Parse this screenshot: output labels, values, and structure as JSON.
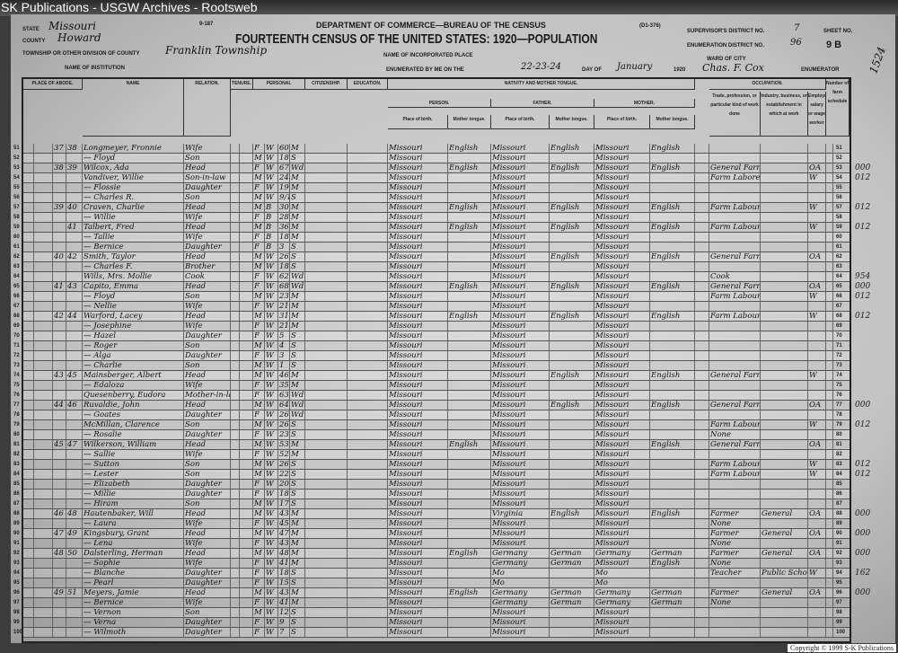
{
  "window": {
    "title": "SK Publications - USGW Archives - Rootsweb"
  },
  "header": {
    "form_no": "9-187",
    "form_code": "(D1-376)",
    "department": "DEPARTMENT OF COMMERCE—BUREAU OF THE CENSUS",
    "title": "FOURTEENTH CENSUS OF THE UNITED STATES: 1920—POPULATION",
    "state_label": "STATE",
    "state": "Missouri",
    "county_label": "COUNTY",
    "county": "Howard",
    "township_label": "TOWNSHIP OR OTHER DIVISION OF COUNTY",
    "township": "Franklin Township",
    "institution_label": "NAME OF INSTITUTION",
    "place_label": "NAME OF INCORPORATED PLACE",
    "ward_label": "WARD OF CITY",
    "supervisor_label": "SUPERVISOR'S DISTRICT NO.",
    "supervisor": "7",
    "ed_label": "ENUMERATION DISTRICT NO.",
    "ed": "96",
    "sheet_label": "SHEET NO.",
    "sheet": "9 B",
    "enumerated_label": "ENUMERATED BY ME ON THE",
    "enumerated_days": "22-23-24",
    "day_of_label": "DAY OF",
    "month": "January",
    "year": "1920",
    "enumerator_name": "Chas. F. Cox",
    "enumerator_label": "ENUMERATOR",
    "margin_note": "1524"
  },
  "columns": {
    "abode": "PLACE OF ABODE.",
    "name": "NAME",
    "relation": "RELATION.",
    "tenure": "TENURE.",
    "personal": "PERSONAL DESCRIPTION.",
    "citizenship": "CITIZENSHIP.",
    "education": "EDUCATION.",
    "nativity": "NATIVITY AND MOTHER TONGUE.",
    "person": "PERSON.",
    "father": "FATHER.",
    "mother": "MOTHER.",
    "place_of_birth": "Place of birth.",
    "mother_tongue": "Mother tongue.",
    "occupation": "OCCUPATION.",
    "trade": "Trade, profession, or particular kind of work done",
    "industry": "Industry, business, or establishment in which at work",
    "employer": "Employer, salary or wage worker",
    "farm_schedule": "Number of farm schedule"
  },
  "rows": [
    [
      "51",
      "37",
      "38",
      "Longmeyer, Fronnie",
      "Wife",
      "F",
      "W",
      "60",
      "M",
      "Missouri",
      "English",
      "Missouri",
      "English",
      "Missouri",
      "English",
      "",
      "",
      "",
      ""
    ],
    [
      "52",
      "",
      "",
      "— Floyd",
      "Son",
      "M",
      "W",
      "18",
      "S",
      "Missouri",
      "",
      "Missouri",
      "",
      "Missouri",
      "",
      "",
      "",
      "",
      ""
    ],
    [
      "53",
      "38",
      "39",
      "Wilcox, Ada",
      "Head",
      "F",
      "W",
      "67",
      "Wd",
      "Missouri",
      "English",
      "Missouri",
      "English",
      "Missouri",
      "English",
      "General Farming",
      "",
      "OA",
      "000"
    ],
    [
      "54",
      "",
      "",
      "Vandiver, Willie",
      "Son-in-law",
      "M",
      "W",
      "24",
      "M",
      "Missouri",
      "",
      "Missouri",
      "",
      "Missouri",
      "",
      "Farm Laborer",
      "",
      "W",
      "012"
    ],
    [
      "55",
      "",
      "",
      "— Flossie",
      "Daughter",
      "F",
      "W",
      "19",
      "M",
      "Missouri",
      "",
      "Missouri",
      "",
      "Missouri",
      "",
      "",
      "",
      "",
      ""
    ],
    [
      "56",
      "",
      "",
      "— Charles R.",
      "Son",
      "M",
      "W",
      "9/12",
      "S",
      "Missouri",
      "",
      "Missouri",
      "",
      "Missouri",
      "",
      "",
      "",
      "",
      ""
    ],
    [
      "57",
      "39",
      "40",
      "Craven, Charlie",
      "Head",
      "M",
      "B",
      "30",
      "M",
      "Missouri",
      "English",
      "Missouri",
      "English",
      "Missouri",
      "English",
      "Farm Labour",
      "",
      "W",
      "012"
    ],
    [
      "58",
      "",
      "",
      "— Willie",
      "Wife",
      "F",
      "B",
      "28",
      "M",
      "Missouri",
      "",
      "Missouri",
      "",
      "Missouri",
      "",
      "",
      "",
      "",
      ""
    ],
    [
      "59",
      "",
      "41",
      "Talbert, Fred",
      "Head",
      "M",
      "B",
      "36",
      "M",
      "Missouri",
      "English",
      "Missouri",
      "English",
      "Missouri",
      "English",
      "Farm Labour",
      "",
      "W",
      "012"
    ],
    [
      "60",
      "",
      "",
      "— Tallie",
      "Wife",
      "F",
      "B",
      "18",
      "M",
      "Missouri",
      "",
      "Missouri",
      "",
      "Missouri",
      "",
      "",
      "",
      "",
      ""
    ],
    [
      "61",
      "",
      "",
      "— Bernice",
      "Daughter",
      "F",
      "B",
      "3",
      "S",
      "Missouri",
      "",
      "Missouri",
      "",
      "Missouri",
      "",
      "",
      "",
      "",
      ""
    ],
    [
      "62",
      "40",
      "42",
      "Smith, Taylor",
      "Head",
      "M",
      "W",
      "26",
      "S",
      "Missouri",
      "",
      "Missouri",
      "English",
      "Missouri",
      "English",
      "General Farming",
      "",
      "OA",
      ""
    ],
    [
      "63",
      "",
      "",
      "— Charles F.",
      "Brother",
      "M",
      "W",
      "18",
      "S",
      "Missouri",
      "",
      "Missouri",
      "",
      "Missouri",
      "",
      "",
      "",
      "",
      ""
    ],
    [
      "64",
      "",
      "",
      "Wills, Mrs. Mollie",
      "Cook",
      "F",
      "W",
      "62",
      "Wd",
      "Missouri",
      "",
      "Missouri",
      "",
      "Missouri",
      "",
      "Cook",
      "",
      "",
      "954"
    ],
    [
      "65",
      "41",
      "43",
      "Capito, Emma",
      "Head",
      "F",
      "W",
      "68",
      "Wd",
      "Missouri",
      "English",
      "Missouri",
      "English",
      "Missouri",
      "English",
      "General Farming",
      "",
      "OA",
      "000"
    ],
    [
      "66",
      "",
      "",
      "— Floyd",
      "Son",
      "M",
      "W",
      "23",
      "M",
      "Missouri",
      "",
      "Missouri",
      "",
      "Missouri",
      "",
      "Farm Labour",
      "",
      "W",
      "012"
    ],
    [
      "67",
      "",
      "",
      "— Nellie",
      "Wife",
      "F",
      "W",
      "21",
      "M",
      "Missouri",
      "",
      "Missouri",
      "",
      "Missouri",
      "",
      "",
      "",
      "",
      ""
    ],
    [
      "68",
      "42",
      "44",
      "Warford, Lacey",
      "Head",
      "M",
      "W",
      "31",
      "M",
      "Missouri",
      "English",
      "Missouri",
      "English",
      "Missouri",
      "English",
      "Farm Labour",
      "",
      "W",
      "012"
    ],
    [
      "69",
      "",
      "",
      "— Josephine",
      "Wife",
      "F",
      "W",
      "21",
      "M",
      "Missouri",
      "",
      "Missouri",
      "",
      "Missouri",
      "",
      "",
      "",
      "",
      ""
    ],
    [
      "70",
      "",
      "",
      "— Hazel",
      "Daughter",
      "F",
      "W",
      "5",
      "S",
      "Missouri",
      "",
      "Missouri",
      "",
      "Missouri",
      "",
      "",
      "",
      "",
      ""
    ],
    [
      "71",
      "",
      "",
      "— Roger",
      "Son",
      "M",
      "W",
      "4",
      "S",
      "Missouri",
      "",
      "Missouri",
      "",
      "Missouri",
      "",
      "",
      "",
      "",
      ""
    ],
    [
      "72",
      "",
      "",
      "— Alga",
      "Daughter",
      "F",
      "W",
      "3",
      "S",
      "Missouri",
      "",
      "Missouri",
      "",
      "Missouri",
      "",
      "",
      "",
      "",
      ""
    ],
    [
      "73",
      "",
      "",
      "— Charlie",
      "Son",
      "M",
      "W",
      "1",
      "S",
      "Missouri",
      "",
      "Missouri",
      "",
      "Missouri",
      "",
      "",
      "",
      "",
      ""
    ],
    [
      "74",
      "43",
      "45",
      "Mainsberger, Albert",
      "Head",
      "M",
      "W",
      "46",
      "M",
      "Missouri",
      "",
      "Missouri",
      "English",
      "Missouri",
      "English",
      "General Farming",
      "",
      "W",
      ""
    ],
    [
      "75",
      "",
      "",
      "— Edaloza",
      "Wife",
      "F",
      "W",
      "35",
      "M",
      "Missouri",
      "",
      "Missouri",
      "",
      "Missouri",
      "",
      "",
      "",
      "",
      ""
    ],
    [
      "76",
      "",
      "",
      "Quesenberry, Eudora",
      "Mother-in-law",
      "F",
      "W",
      "63",
      "Wd",
      "Missouri",
      "",
      "Missouri",
      "",
      "Missouri",
      "",
      "",
      "",
      "",
      ""
    ],
    [
      "77",
      "44",
      "46",
      "Ruvaldie, John",
      "Head",
      "M",
      "W",
      "64",
      "Wd",
      "Missouri",
      "",
      "Missouri",
      "English",
      "Missouri",
      "English",
      "General Farming",
      "",
      "OA",
      "000"
    ],
    [
      "78",
      "",
      "",
      "— Goates",
      "Daughter",
      "F",
      "W",
      "26",
      "Wd",
      "Missouri",
      "",
      "Missouri",
      "",
      "Missouri",
      "",
      "",
      "",
      "",
      ""
    ],
    [
      "79",
      "",
      "",
      "McMillan, Clarence",
      "Son",
      "M",
      "W",
      "26",
      "S",
      "Missouri",
      "",
      "Missouri",
      "",
      "Missouri",
      "",
      "Farm Labour",
      "",
      "W",
      "012"
    ],
    [
      "80",
      "",
      "",
      "— Rosalie",
      "Daughter",
      "F",
      "W",
      "23",
      "S",
      "Missouri",
      "",
      "Missouri",
      "",
      "Missouri",
      "",
      "None",
      "",
      "",
      ""
    ],
    [
      "81",
      "45",
      "47",
      "Wilkerson, William",
      "Head",
      "M",
      "W",
      "53",
      "M",
      "Missouri",
      "English",
      "Missouri",
      "",
      "Missouri",
      "English",
      "General Farming",
      "",
      "OA",
      ""
    ],
    [
      "82",
      "",
      "",
      "— Sallie",
      "Wife",
      "F",
      "W",
      "52",
      "M",
      "Missouri",
      "",
      "Missouri",
      "",
      "Missouri",
      "",
      "",
      "",
      "",
      ""
    ],
    [
      "83",
      "",
      "",
      "— Sutton",
      "Son",
      "M",
      "W",
      "26",
      "S",
      "Missouri",
      "",
      "Missouri",
      "",
      "Missouri",
      "",
      "Farm Labour",
      "",
      "W",
      "012"
    ],
    [
      "84",
      "",
      "",
      "— Lester",
      "Son",
      "M",
      "W",
      "22",
      "S",
      "Missouri",
      "",
      "Missouri",
      "",
      "Missouri",
      "",
      "Farm Labour",
      "",
      "W",
      "012"
    ],
    [
      "85",
      "",
      "",
      "— Elizabeth",
      "Daughter",
      "F",
      "W",
      "20",
      "S",
      "Missouri",
      "",
      "Missouri",
      "",
      "Missouri",
      "",
      "",
      "",
      "",
      ""
    ],
    [
      "86",
      "",
      "",
      "— Millie",
      "Daughter",
      "F",
      "W",
      "18",
      "S",
      "Missouri",
      "",
      "Missouri",
      "",
      "Missouri",
      "",
      "",
      "",
      "",
      ""
    ],
    [
      "87",
      "",
      "",
      "— Hiram",
      "Son",
      "M",
      "W",
      "17",
      "S",
      "Missouri",
      "",
      "Missouri",
      "",
      "Missouri",
      "",
      "",
      "",
      "",
      ""
    ],
    [
      "88",
      "46",
      "48",
      "Hautenbaker, Will",
      "Head",
      "M",
      "W",
      "43",
      "M",
      "Missouri",
      "",
      "Virginia",
      "English",
      "Missouri",
      "English",
      "Farmer",
      "General",
      "OA",
      "000"
    ],
    [
      "89",
      "",
      "",
      "— Laura",
      "Wife",
      "F",
      "W",
      "45",
      "M",
      "Missouri",
      "",
      "Missouri",
      "",
      "Missouri",
      "",
      "None",
      "",
      "",
      ""
    ],
    [
      "90",
      "47",
      "49",
      "Kingsbury, Grant",
      "Head",
      "M",
      "W",
      "47",
      "M",
      "Missouri",
      "",
      "Missouri",
      "",
      "Missouri",
      "",
      "Farmer",
      "General",
      "OA",
      "000"
    ],
    [
      "91",
      "",
      "",
      "— Lena",
      "Wife",
      "F",
      "W",
      "43",
      "M",
      "Missouri",
      "",
      "Missouri",
      "",
      "Missouri",
      "",
      "None",
      "",
      "",
      ""
    ],
    [
      "92",
      "48",
      "50",
      "Dalsterling, Herman",
      "Head",
      "M",
      "W",
      "48",
      "M",
      "Missouri",
      "English",
      "Germany",
      "German",
      "Germany",
      "German",
      "Farmer",
      "General",
      "OA",
      "000"
    ],
    [
      "93",
      "",
      "",
      "— Sophie",
      "Wife",
      "F",
      "W",
      "41",
      "M",
      "Missouri",
      "",
      "Germany",
      "German",
      "Missouri",
      "English",
      "None",
      "",
      "",
      ""
    ],
    [
      "94",
      "",
      "",
      "— Blanche",
      "Daughter",
      "F",
      "W",
      "18",
      "S",
      "Missouri",
      "",
      "Mo",
      "",
      "Mo",
      "",
      "Teacher",
      "Public School",
      "W",
      "162"
    ],
    [
      "95",
      "",
      "",
      "— Pearl",
      "Daughter",
      "F",
      "W",
      "15",
      "S",
      "Missouri",
      "",
      "Mo",
      "",
      "Mo",
      "",
      "",
      "",
      "",
      ""
    ],
    [
      "96",
      "49",
      "51",
      "Meyers, Jamie",
      "Head",
      "M",
      "W",
      "43",
      "M",
      "Missouri",
      "English",
      "Germany",
      "German",
      "Germany",
      "German",
      "Farmer",
      "General",
      "OA",
      "000"
    ],
    [
      "97",
      "",
      "",
      "— Bernice",
      "Wife",
      "F",
      "W",
      "41",
      "M",
      "Missouri",
      "",
      "Germany",
      "German",
      "Germany",
      "German",
      "None",
      "",
      "",
      ""
    ],
    [
      "98",
      "",
      "",
      "— Vernon",
      "Son",
      "M",
      "W",
      "12",
      "S",
      "Missouri",
      "",
      "Missouri",
      "",
      "Missouri",
      "",
      "",
      "",
      "",
      ""
    ],
    [
      "99",
      "",
      "",
      "— Verna",
      "Daughter",
      "F",
      "W",
      "9",
      "S",
      "Missouri",
      "",
      "Missouri",
      "",
      "Missouri",
      "",
      "",
      "",
      "",
      ""
    ],
    [
      "100",
      "",
      "",
      "— Wilmoth",
      "Daughter",
      "F",
      "W",
      "7",
      "S",
      "Missouri",
      "",
      "Missouri",
      "",
      "Missouri",
      "",
      "",
      "",
      "",
      ""
    ]
  ],
  "footer": {
    "copyright": "Copyright © 1999 S-K Publications"
  }
}
